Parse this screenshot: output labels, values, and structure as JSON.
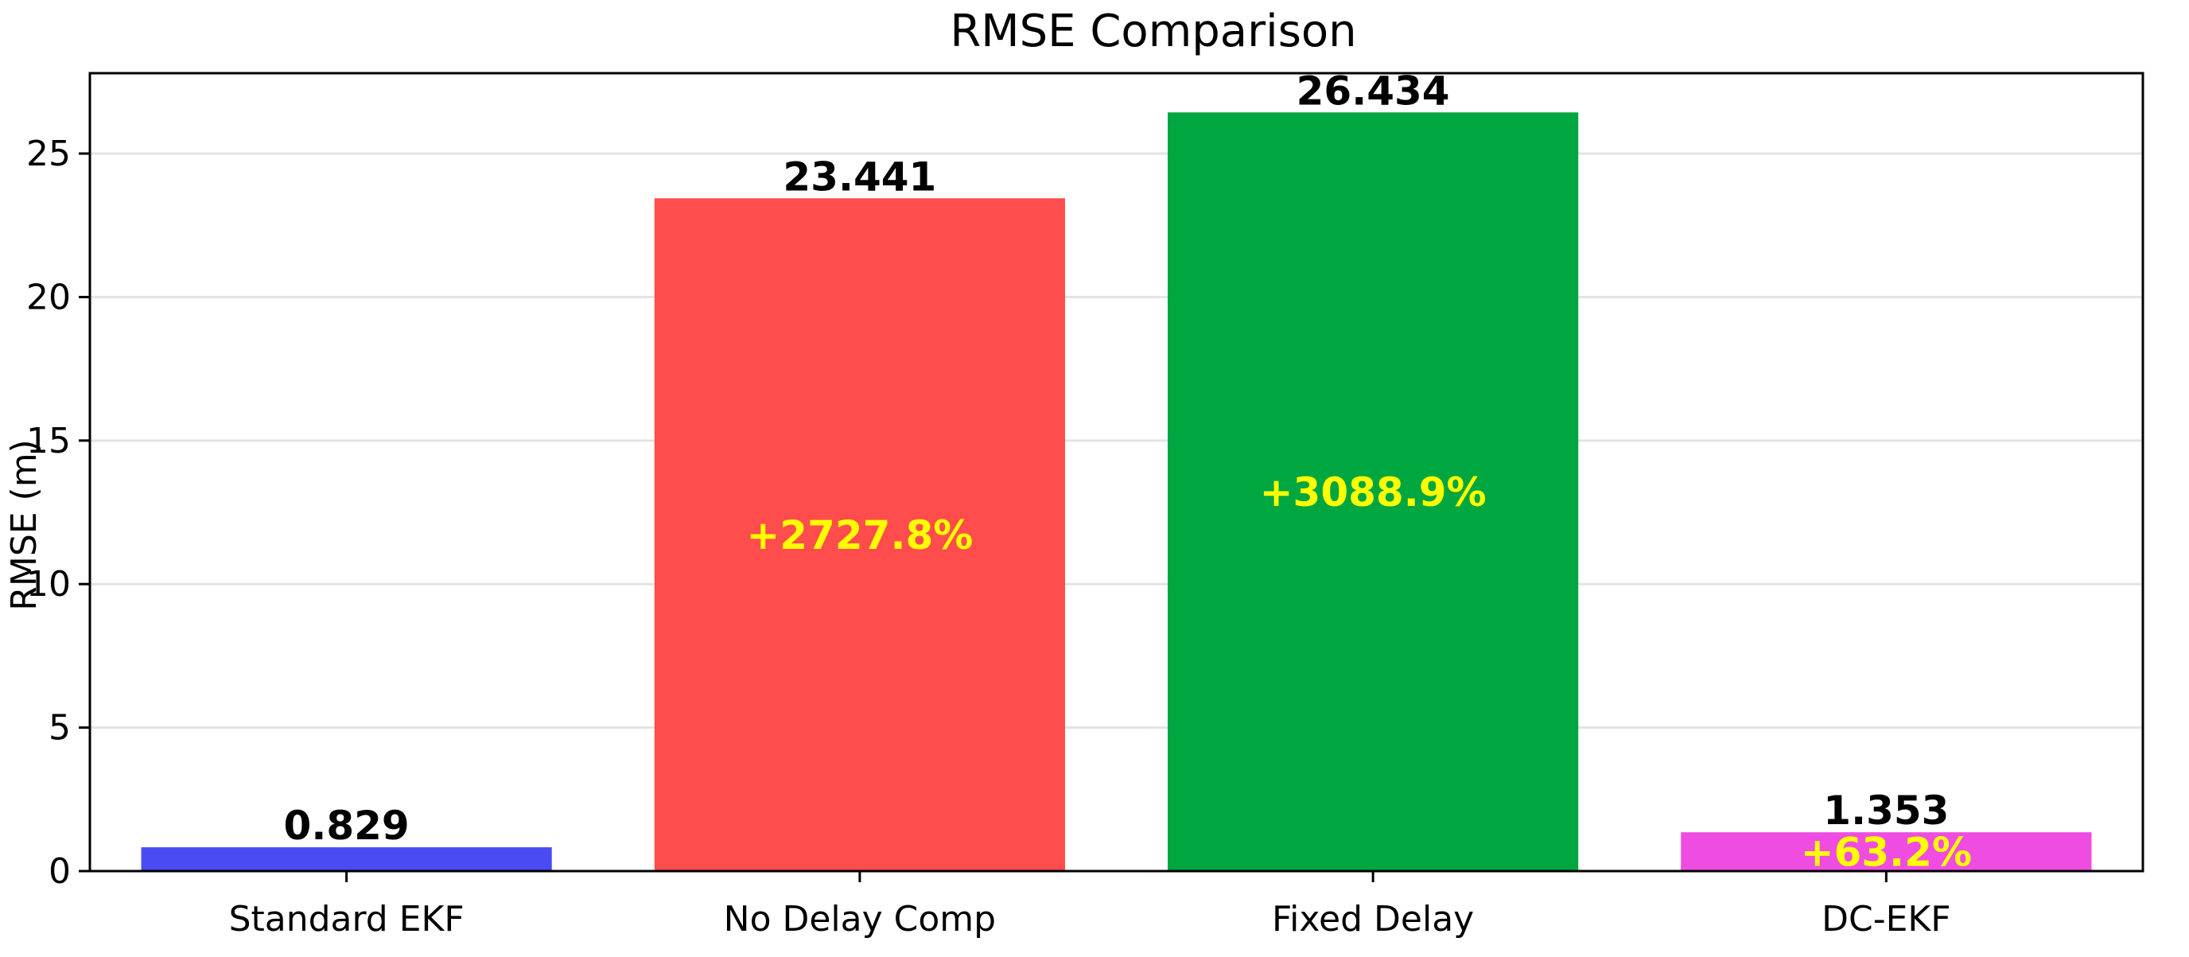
{
  "chart_data": {
    "type": "bar",
    "title": "RMSE Comparison",
    "xlabel": "",
    "ylabel": "RMSE (m)",
    "ylim": [
      0,
      27.8
    ],
    "yticks": [
      0,
      5,
      10,
      15,
      20,
      25
    ],
    "grid": "y",
    "categories": [
      "Standard EKF",
      "No Delay Comp",
      "Fixed Delay",
      "DC-EKF"
    ],
    "values": [
      0.829,
      23.441,
      26.434,
      1.353
    ],
    "value_labels": [
      "0.829",
      "23.441",
      "26.434",
      "1.353"
    ],
    "percent_labels": [
      "",
      "+2727.8%",
      "+3088.9%",
      "+63.2%"
    ],
    "colors": [
      "#4b4bf4",
      "#ff4c4c",
      "#00a640",
      "#ef4ce1"
    ],
    "percent_label_color": "#ffff00"
  }
}
